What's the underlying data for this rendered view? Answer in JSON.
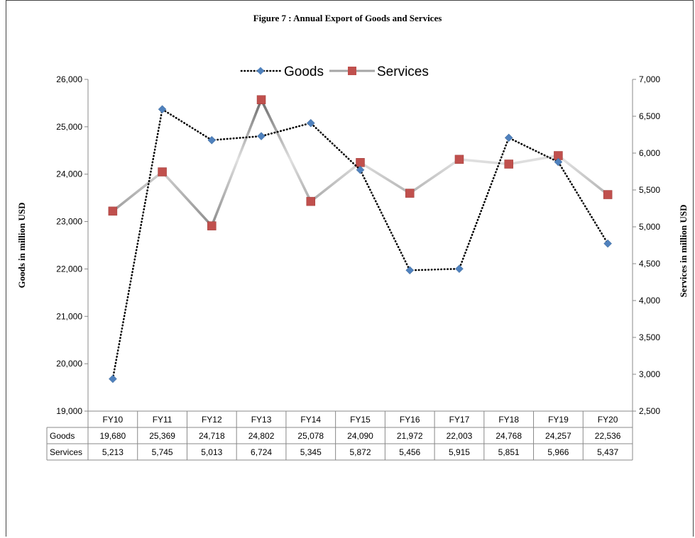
{
  "chart_data": {
    "type": "line",
    "title": "Figure  7 : Annual Export of Goods and Services",
    "categories": [
      "FY10",
      "FY11",
      "FY12",
      "FY13",
      "FY14",
      "FY15",
      "FY16",
      "FY17",
      "FY18",
      "FY19",
      "FY20"
    ],
    "series": [
      {
        "name": "Goods",
        "axis": "left",
        "values": [
          19680,
          25369,
          24718,
          24802,
          25078,
          24090,
          21972,
          22003,
          24768,
          24257,
          22536
        ],
        "color": "#4f81bd",
        "line_style": "dotted"
      },
      {
        "name": "Services",
        "axis": "right",
        "values": [
          5213,
          5745,
          5013,
          6724,
          5345,
          5872,
          5456,
          5915,
          5851,
          5966,
          5437
        ],
        "color": "#c0504d",
        "line_style": "gradient-silver"
      }
    ],
    "ylabel_left": "Goods in million USD",
    "ylabel_right": "Services in million  USD",
    "ylim_left": [
      19000,
      26000
    ],
    "ylim_right": [
      2500,
      7000
    ],
    "yticks_left": [
      "19,000",
      "20,000",
      "21,000",
      "22,000",
      "23,000",
      "24,000",
      "25,000",
      "26,000"
    ],
    "yticks_right": [
      "2,500",
      "3,000",
      "3,500",
      "4,000",
      "4,500",
      "5,000",
      "5,500",
      "6,000",
      "6,500",
      "7,000"
    ],
    "legend_position": "top",
    "data_table": {
      "row_labels": [
        "Goods",
        "Services"
      ],
      "rows": [
        [
          "19,680",
          "25,369",
          "24,718",
          "24,802",
          "25,078",
          "24,090",
          "21,972",
          "22,003",
          "24,768",
          "24,257",
          "22,536"
        ],
        [
          "5,213",
          "5,745",
          "5,013",
          "6,724",
          "5,345",
          "5,872",
          "5,456",
          "5,915",
          "5,851",
          "5,966",
          "5,437"
        ]
      ]
    },
    "grid": false
  }
}
